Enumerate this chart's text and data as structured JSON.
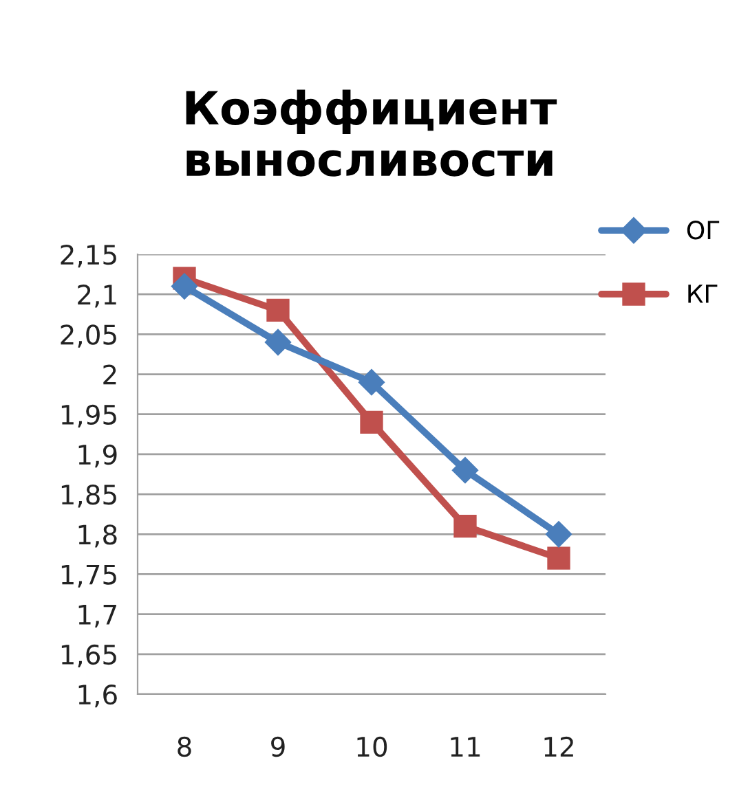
{
  "chart_data": {
    "type": "line",
    "title": "Коэффициент выносливости",
    "categories": [
      "8",
      "9",
      "10",
      "11",
      "12"
    ],
    "series": [
      {
        "name": "ОГ",
        "color": "#4a7ebb",
        "marker": "diamond",
        "values": [
          2.11,
          2.04,
          1.99,
          1.88,
          1.8
        ]
      },
      {
        "name": "КГ",
        "color": "#c0504d",
        "marker": "square",
        "values": [
          2.12,
          2.08,
          1.94,
          1.81,
          1.77
        ]
      }
    ],
    "ylim": [
      1.6,
      2.15
    ],
    "yticks": [
      {
        "value": 1.6,
        "label": "1,6"
      },
      {
        "value": 1.65,
        "label": "1,65"
      },
      {
        "value": 1.7,
        "label": "1,7"
      },
      {
        "value": 1.75,
        "label": "1,75"
      },
      {
        "value": 1.8,
        "label": "1,8"
      },
      {
        "value": 1.85,
        "label": "1,85"
      },
      {
        "value": 1.9,
        "label": "1,9"
      },
      {
        "value": 1.95,
        "label": "1,95"
      },
      {
        "value": 2,
        "label": "2"
      },
      {
        "value": 2.05,
        "label": "2,05"
      },
      {
        "value": 2.1,
        "label": "2,1"
      },
      {
        "value": 2.15,
        "label": "2,15"
      }
    ],
    "grid": "y",
    "legend": "top right",
    "line_style": "solid"
  }
}
